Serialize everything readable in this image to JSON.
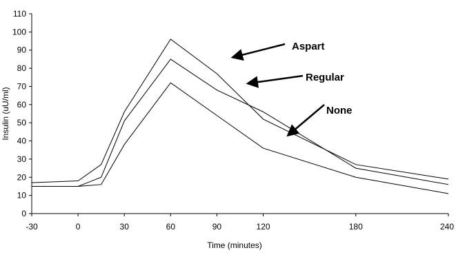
{
  "chart_data": {
    "type": "line",
    "title": "",
    "xlabel": "Time (minutes)",
    "ylabel": "Insulin (uU/ml)",
    "x": [
      -30,
      0,
      15,
      30,
      60,
      90,
      120,
      180,
      240
    ],
    "xlim": [
      -30,
      240
    ],
    "ylim": [
      0,
      110
    ],
    "xticks": [
      -30,
      0,
      30,
      60,
      90,
      120,
      180,
      240
    ],
    "yticks": [
      0,
      10,
      20,
      30,
      40,
      50,
      60,
      70,
      80,
      90,
      100,
      110
    ],
    "grid": false,
    "legend": "none",
    "line_color": "#000000",
    "series": [
      {
        "name": "Aspart",
        "values": [
          17,
          18,
          27,
          56,
          96,
          77,
          52,
          27,
          19
        ]
      },
      {
        "name": "Regular",
        "values": [
          15,
          15,
          20,
          51,
          85,
          68,
          56,
          25,
          16
        ]
      },
      {
        "name": "None",
        "values": [
          15,
          15,
          16,
          38,
          72,
          54,
          36,
          20,
          11
        ]
      }
    ]
  }
}
